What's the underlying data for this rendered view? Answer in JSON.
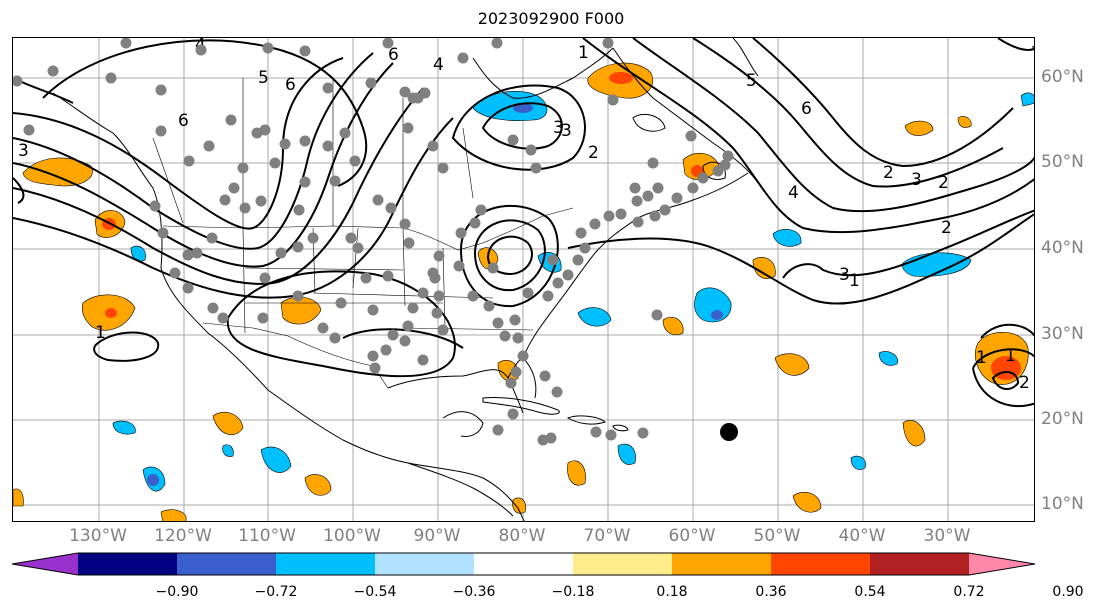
{
  "title": "2023092900 F000",
  "lon_labels": [
    "130°W",
    "120°W",
    "110°W",
    "100°W",
    "90°W",
    "80°W",
    "70°W",
    "60°W",
    "50°W",
    "40°W",
    "30°W"
  ],
  "lat_labels": [
    "60°N",
    "50°N",
    "40°N",
    "30°N",
    "20°N",
    "10°N"
  ],
  "colorbar": {
    "labels": [
      "−0.90",
      "−0.72",
      "−0.54",
      "−0.36",
      "−0.18",
      "0.18",
      "0.36",
      "0.54",
      "0.72",
      "0.90"
    ],
    "colors": [
      "#9932cc",
      "#000080",
      "#3a5fcd",
      "#00bfff",
      "#b0e2ff",
      "#ffffff",
      "#ffec8b",
      "#ffa500",
      "#ff4500",
      "#b22222",
      "#ff88aa"
    ]
  },
  "contour_labels": [
    "4",
    "6",
    "5",
    "6",
    "4",
    "6",
    "3",
    "1",
    "1",
    "2",
    "3",
    "3",
    "2",
    "5",
    "6",
    "4",
    "3",
    "2",
    "2",
    "1",
    "3",
    "1",
    "1",
    "2",
    "3"
  ],
  "legend_colors": {
    "positive": "#ffa500",
    "positive_strong": "#ff4500",
    "negative": "#00bfff",
    "negative_strong": "#3a5fcd",
    "station": "#808080"
  }
}
